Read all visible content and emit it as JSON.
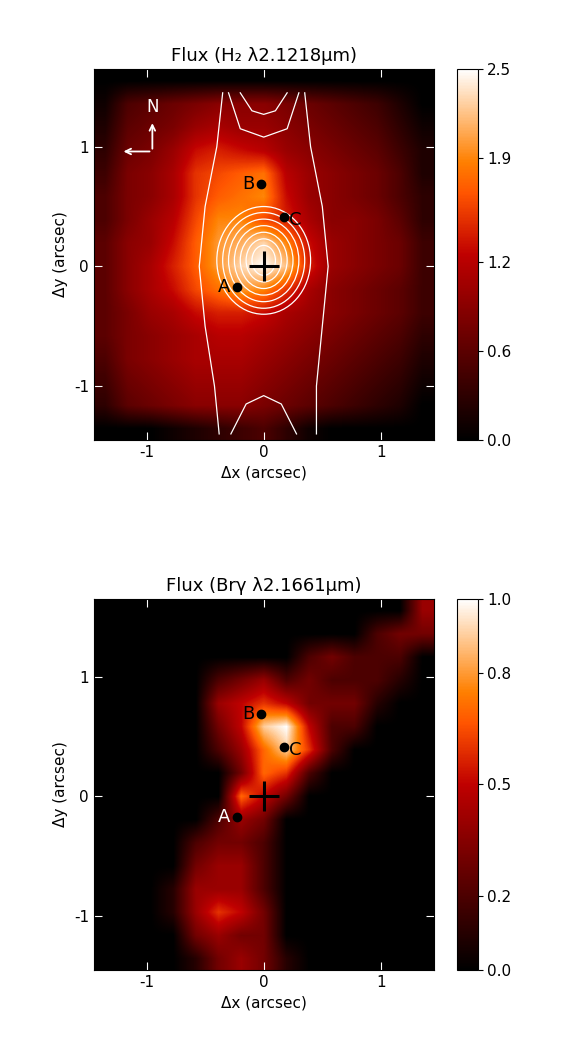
{
  "chart_data": [
    {
      "type": "heatmap",
      "title": "Flux (H₂ λ2.1218μm)",
      "x_label": "Δx (arcsec)",
      "y_label": "Δy (arcsec)",
      "xlim": [
        -1.45,
        1.45
      ],
      "ylim": [
        -1.45,
        1.65
      ],
      "xticks": [
        -1,
        0,
        1
      ],
      "yticks": [
        -1,
        0,
        1
      ],
      "colorbar_range": [
        0.0,
        2.5
      ],
      "colorbar_ticks": [
        0.0,
        0.6,
        1.2,
        1.9,
        2.5
      ],
      "cells": [
        [
          0,
          0,
          0,
          0.1,
          0.2,
          0.3,
          0.4,
          0.5,
          0.3,
          0.1,
          0,
          0,
          0,
          0,
          0
        ],
        [
          0.3,
          0.6,
          0.7,
          0.8,
          0.9,
          0.9,
          0.9,
          0.8,
          0.7,
          0.6,
          0.5,
          0.4,
          0.3,
          0.2,
          0
        ],
        [
          0.4,
          0.7,
          0.8,
          0.9,
          1.0,
          1.0,
          1.0,
          0.9,
          0.8,
          0.7,
          0.6,
          0.5,
          0.4,
          0.3,
          0.1
        ],
        [
          0.5,
          0.8,
          0.9,
          1.0,
          1.1,
          1.1,
          1.1,
          1.0,
          0.9,
          0.8,
          0.7,
          0.6,
          0.5,
          0.4,
          0.2
        ],
        [
          0.6,
          0.8,
          0.9,
          1.0,
          1.1,
          1.2,
          1.2,
          1.1,
          1.0,
          0.9,
          0.8,
          0.7,
          0.6,
          0.5,
          0.3
        ],
        [
          0.6,
          0.8,
          1.0,
          1.1,
          1.3,
          1.4,
          1.4,
          1.3,
          1.1,
          1.0,
          0.9,
          0.8,
          0.7,
          0.6,
          0.4
        ],
        [
          0.6,
          0.9,
          1.1,
          1.3,
          1.6,
          1.8,
          2.0,
          1.9,
          1.5,
          1.1,
          0.9,
          0.8,
          0.7,
          0.6,
          0.4
        ],
        [
          0.6,
          0.9,
          1.1,
          1.4,
          1.7,
          2.0,
          2.3,
          2.5,
          2.2,
          1.4,
          1.0,
          0.9,
          0.8,
          0.7,
          0.4
        ],
        [
          0.6,
          0.9,
          1.0,
          1.3,
          1.7,
          2.0,
          2.1,
          2.3,
          1.9,
          1.3,
          1.0,
          0.9,
          0.8,
          0.7,
          0.4
        ],
        [
          0.5,
          0.8,
          1.0,
          1.2,
          1.6,
          1.9,
          1.9,
          1.6,
          1.4,
          1.1,
          0.9,
          0.9,
          0.8,
          0.6,
          0.3
        ],
        [
          0.5,
          0.8,
          0.9,
          1.1,
          1.5,
          1.7,
          1.8,
          1.9,
          1.3,
          1.0,
          0.9,
          0.8,
          0.7,
          0.5,
          0.3
        ],
        [
          0.4,
          0.8,
          0.9,
          1.1,
          1.5,
          1.6,
          1.7,
          1.8,
          1.2,
          1.0,
          0.9,
          0.8,
          0.7,
          0.5,
          0.2
        ],
        [
          0.3,
          0.7,
          0.8,
          1.0,
          1.3,
          1.4,
          1.3,
          1.2,
          1.0,
          0.9,
          0.8,
          0.7,
          0.6,
          0.4,
          0.2
        ],
        [
          0.2,
          0.6,
          0.7,
          0.8,
          1.0,
          1.1,
          1.0,
          1.0,
          0.9,
          0.8,
          0.7,
          0.6,
          0.5,
          0.3,
          0.1
        ],
        [
          0.1,
          0.5,
          0.6,
          0.7,
          0.8,
          0.9,
          0.9,
          0.9,
          0.8,
          0.7,
          0.6,
          0.5,
          0.4,
          0.2,
          0.0
        ],
        [
          0,
          0,
          0,
          0,
          0,
          0,
          0,
          0,
          0,
          0,
          0,
          0,
          0,
          0,
          0
        ]
      ],
      "center": {
        "x": 0,
        "y": 0
      },
      "points": [
        {
          "label": "A",
          "x": -0.23,
          "y": -0.17
        },
        {
          "label": "B",
          "x": -0.02,
          "y": 0.69
        },
        {
          "label": "C",
          "x": 0.17,
          "y": 0.41
        }
      ],
      "compass": "N",
      "contour_ellipses": [
        {
          "x": 0,
          "y": 0.05,
          "width": 0.2,
          "height": 0.25
        },
        {
          "x": 0,
          "y": 0.05,
          "width": 0.3,
          "height": 0.36
        },
        {
          "x": 0,
          "y": 0.05,
          "width": 0.4,
          "height": 0.47
        },
        {
          "x": 0,
          "y": 0.05,
          "width": 0.5,
          "height": 0.58
        },
        {
          "x": 0,
          "y": 0.05,
          "width": 0.6,
          "height": 0.69
        },
        {
          "x": 0,
          "y": 0.05,
          "width": 0.7,
          "height": 0.8
        },
        {
          "x": 0,
          "y": 0.05,
          "width": 0.8,
          "height": 0.9
        }
      ],
      "contour_lines": [
        {
          "x": [
            -0.35,
            -0.4,
            -0.5,
            -0.55,
            -0.5,
            -0.42,
            -0.38
          ],
          "y": [
            1.45,
            1.0,
            0.5,
            0,
            -0.5,
            -1.0,
            -1.4
          ]
        },
        {
          "x": [
            0.35,
            0.4,
            0.5,
            0.55,
            0.5,
            0.45,
            0.45
          ],
          "y": [
            1.45,
            1.0,
            0.5,
            0,
            -0.5,
            -1.0,
            -1.4
          ]
        },
        {
          "x": [
            -0.2,
            -0.1,
            0,
            0.1,
            0.2
          ],
          "y": [
            1.45,
            1.3,
            1.27,
            1.3,
            1.45
          ]
        },
        {
          "x": [
            -0.3,
            -0.2,
            0,
            0.2,
            0.3
          ],
          "y": [
            1.45,
            1.15,
            1.08,
            1.15,
            1.45
          ]
        },
        {
          "x": [
            -0.28,
            -0.15,
            0,
            0.15,
            0.28
          ],
          "y": [
            -1.4,
            -1.15,
            -1.08,
            -1.15,
            -1.4
          ]
        }
      ]
    },
    {
      "type": "heatmap",
      "title": "Flux (Brγ λ2.1661μm)",
      "x_label": "Δx (arcsec)",
      "y_label": "Δy (arcsec)",
      "xlim": [
        -1.45,
        1.45
      ],
      "ylim": [
        -1.45,
        1.65
      ],
      "xticks": [
        -1,
        0,
        1
      ],
      "yticks": [
        -1,
        0,
        1
      ],
      "colorbar_range": [
        0.0,
        1.0
      ],
      "colorbar_ticks": [
        0.0,
        0.2,
        0.5,
        0.8,
        1.0
      ],
      "cells": [
        [
          0,
          0,
          0,
          0,
          0.1,
          0.3,
          0.4,
          0.3,
          0.1,
          0,
          0,
          0,
          0,
          0,
          0
        ],
        [
          0,
          0,
          0,
          0,
          0.3,
          0.4,
          0.3,
          0.3,
          0,
          0,
          0,
          0,
          0,
          0,
          0
        ],
        [
          0,
          0,
          0,
          0.1,
          0.4,
          0.6,
          0.5,
          0.3,
          0,
          0,
          0,
          0,
          0,
          0,
          0
        ],
        [
          0,
          0,
          0,
          0.1,
          0.4,
          0.4,
          0.4,
          0.2,
          0,
          0,
          0,
          0,
          0,
          0,
          0
        ],
        [
          0,
          0,
          0,
          0,
          0.3,
          0.4,
          0.4,
          0.2,
          0,
          0,
          0,
          0,
          0,
          0,
          0
        ],
        [
          0,
          0,
          0,
          0,
          0.2,
          0.3,
          0.3,
          0.2,
          0,
          0,
          0,
          0,
          0,
          0,
          0
        ],
        [
          0,
          0,
          0,
          0,
          0,
          0.2,
          0.4,
          0.3,
          0,
          0,
          0,
          0,
          0,
          0,
          0
        ],
        [
          0,
          0,
          0,
          0,
          0,
          0,
          0.7,
          0.5,
          0.3,
          0,
          0,
          0,
          0,
          0,
          0
        ],
        [
          0,
          0,
          0,
          0,
          0,
          0,
          0.3,
          0.7,
          0.6,
          0.2,
          0,
          0,
          0,
          0,
          0
        ],
        [
          0,
          0,
          0,
          0,
          0,
          0.2,
          0.4,
          0.7,
          0.9,
          0.6,
          0.2,
          0,
          0,
          0,
          0
        ],
        [
          0,
          0,
          0,
          0,
          0,
          0.3,
          0.5,
          0.9,
          1.0,
          0.5,
          0.2,
          0.2,
          0,
          0,
          0
        ],
        [
          0,
          0,
          0,
          0,
          0,
          0.4,
          0.5,
          0.6,
          0.5,
          0.3,
          0.3,
          0.3,
          0.1,
          0,
          0
        ],
        [
          0,
          0,
          0,
          0,
          0,
          0.2,
          0.3,
          0.4,
          0.2,
          0.3,
          0.2,
          0.2,
          0.2,
          0.1,
          0
        ],
        [
          0,
          0,
          0,
          0,
          0,
          0,
          0,
          0,
          0,
          0.2,
          0.3,
          0.2,
          0.2,
          0.2,
          0
        ],
        [
          0,
          0,
          0,
          0,
          0,
          0,
          0,
          0,
          0,
          0,
          0,
          0,
          0.2,
          0.3,
          0.3
        ],
        [
          0,
          0,
          0,
          0,
          0,
          0,
          0,
          0,
          0,
          0,
          0,
          0,
          0,
          0,
          0.4
        ]
      ],
      "center": {
        "x": 0,
        "y": 0
      },
      "points": [
        {
          "label": "A",
          "x": -0.23,
          "y": -0.17
        },
        {
          "label": "B",
          "x": -0.02,
          "y": 0.69
        },
        {
          "label": "C",
          "x": 0.17,
          "y": 0.41
        }
      ]
    }
  ]
}
